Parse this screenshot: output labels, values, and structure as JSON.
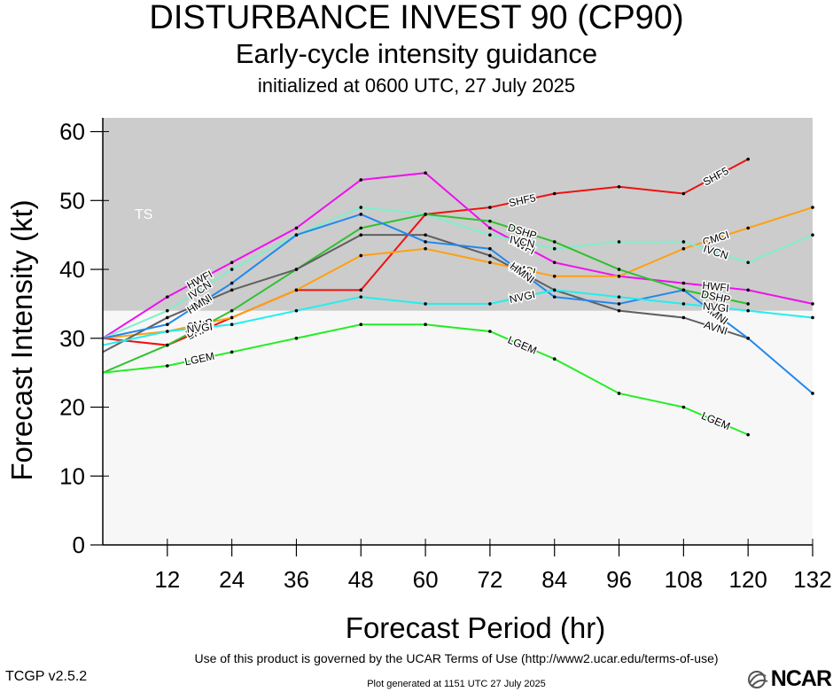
{
  "header": {
    "title": "DISTURBANCE INVEST 90 (CP90)",
    "subtitle": "Early-cycle intensity guidance",
    "initialized": "initialized at 0600 UTC, 27 July 2025"
  },
  "footer": {
    "terms": "Use of this product is governed by the UCAR Terms of Use (http://www2.ucar.edu/terms-of-use)",
    "version": "TCGP v2.5.2",
    "generated": "Plot generated at 1151 UTC   27 July 2025",
    "logo_text": "NCAR"
  },
  "chart_data": {
    "type": "line",
    "xlabel": "Forecast Period (hr)",
    "ylabel": "Forecast Intensity (kt)",
    "xlim": [
      0,
      132
    ],
    "ylim": [
      0,
      62
    ],
    "xticks": [
      12,
      24,
      36,
      48,
      60,
      72,
      84,
      96,
      108,
      120,
      132
    ],
    "yticks": [
      0,
      10,
      20,
      30,
      40,
      50,
      60
    ],
    "colors": {
      "ts_band": "#cccccc",
      "background": "#f7f7f7"
    },
    "bands": [
      {
        "label": "TS",
        "ymin": 34,
        "ymax": 62
      }
    ],
    "series": [
      {
        "name": "SHF5",
        "color": "#ee1111",
        "x": [
          0,
          12,
          24,
          36,
          48,
          60,
          72,
          84,
          96,
          108,
          120
        ],
        "y": [
          30,
          29,
          33,
          37,
          37,
          48,
          49,
          51,
          52,
          51,
          56
        ]
      },
      {
        "name": "HWFI",
        "color": "#ee11ee",
        "x": [
          0,
          12,
          24,
          36,
          48,
          60,
          72,
          84,
          96,
          108,
          120,
          132
        ],
        "y": [
          30,
          36,
          41,
          46,
          53,
          54,
          46,
          41,
          39,
          38,
          37,
          35
        ]
      },
      {
        "name": "CMCI",
        "color": "#ffa010",
        "x": [
          0,
          12,
          24,
          36,
          48,
          60,
          72,
          84,
          96,
          108,
          120,
          132
        ],
        "y": [
          30,
          31,
          33,
          37,
          42,
          43,
          41,
          39,
          39,
          43,
          46,
          49
        ]
      },
      {
        "name": "IVCN",
        "color": "#80eecc",
        "x": [
          0,
          12,
          24,
          36,
          48,
          60,
          72,
          84,
          96,
          108,
          120,
          132
        ],
        "y": [
          30,
          34,
          40,
          45,
          49,
          48,
          45,
          43,
          44,
          44,
          41,
          45
        ]
      },
      {
        "name": "DSHP",
        "color": "#30c030",
        "x": [
          0,
          12,
          24,
          36,
          48,
          60,
          72,
          84,
          96,
          108,
          120
        ],
        "y": [
          25,
          29,
          34,
          40,
          46,
          48,
          47,
          44,
          40,
          37,
          35
        ]
      },
      {
        "name": "AVNI",
        "color": "#606060",
        "x": [
          0,
          12,
          24,
          36,
          48,
          60,
          72,
          84,
          96,
          108,
          120
        ],
        "y": [
          28,
          33,
          37,
          40,
          45,
          45,
          42,
          37,
          34,
          33,
          30
        ]
      },
      {
        "name": "HMNI",
        "color": "#2288ee",
        "x": [
          0,
          12,
          24,
          36,
          48,
          60,
          72,
          84,
          96,
          108,
          120,
          132
        ],
        "y": [
          30,
          32,
          38,
          45,
          48,
          44,
          43,
          36,
          35,
          37,
          30,
          22
        ]
      },
      {
        "name": "NVGI",
        "color": "#22eeee",
        "x": [
          0,
          12,
          24,
          36,
          48,
          60,
          72,
          84,
          96,
          108,
          120,
          132
        ],
        "y": [
          29,
          31,
          32,
          34,
          36,
          35,
          35,
          37,
          36,
          35,
          34,
          33
        ]
      },
      {
        "name": "LGEM",
        "color": "#22ee22",
        "x": [
          0,
          12,
          24,
          36,
          48,
          60,
          72,
          84,
          96,
          108,
          120
        ],
        "y": [
          25,
          26,
          28,
          30,
          32,
          32,
          31,
          27,
          22,
          20,
          16
        ]
      }
    ]
  }
}
